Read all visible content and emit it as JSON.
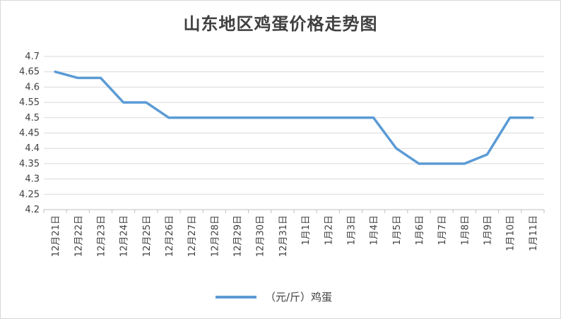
{
  "chart_data": {
    "type": "line",
    "title": "山东地区鸡蛋价格走势图",
    "categories": [
      "12月21日",
      "12月22日",
      "12月23日",
      "12月24日",
      "12月25日",
      "12月26日",
      "12月27日",
      "12月28日",
      "12月29日",
      "12月30日",
      "12月31日",
      "1月1日",
      "1月2日",
      "1月3日",
      "1月4日",
      "1月5日",
      "1月6日",
      "1月7日",
      "1月8日",
      "1月9日",
      "1月10日",
      "1月11日"
    ],
    "series": [
      {
        "name": "（元/斤）鸡蛋",
        "color": "#5b9bd5",
        "values": [
          4.65,
          4.63,
          4.63,
          4.55,
          4.55,
          4.5,
          4.5,
          4.5,
          4.5,
          4.5,
          4.5,
          4.5,
          4.5,
          4.5,
          4.5,
          4.4,
          4.35,
          4.35,
          4.35,
          4.38,
          4.5,
          4.5
        ]
      }
    ],
    "ylim": [
      4.2,
      4.7
    ],
    "yticks": [
      "4.2",
      "4.25",
      "4.3",
      "4.35",
      "4.4",
      "4.45",
      "4.5",
      "4.55",
      "4.6",
      "4.65",
      "4.7"
    ],
    "grid": true,
    "legend": "bottom"
  }
}
